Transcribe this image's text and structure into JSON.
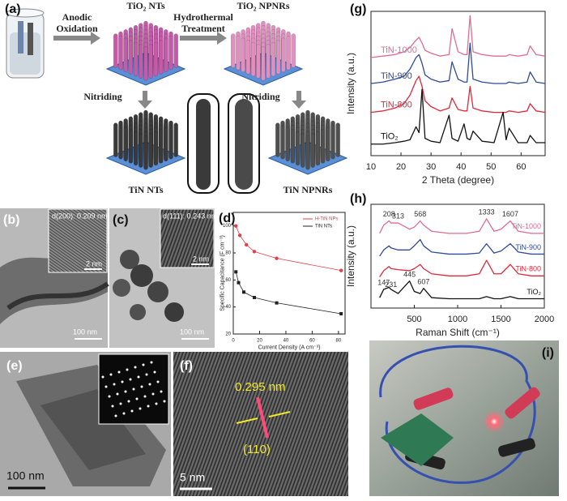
{
  "figure": {
    "panel_a": {
      "label": "(a)",
      "anodic": [
        "Anodic",
        "Oxidation"
      ],
      "tio2_nts": "TiO₂ NTs",
      "hydrothermal": [
        "Hydrothermal",
        "Treatment"
      ],
      "tio2_npnrs": "TiO₂ NPNRs",
      "nitriding_1": "Nitriding",
      "nitriding_2": "Nitriding",
      "tin_nts": "TiN NTs",
      "tin_npnrs": "TiN NPNRs"
    },
    "panel_b": {
      "label": "(b)",
      "spacing": "d(200): 0.209 nm",
      "inset_scale": "2 nm",
      "scale": "100 nm"
    },
    "panel_c": {
      "label": "(c)",
      "spacing": "d(111): 0.243 nm",
      "inset_scale": "2 nm",
      "scale": "100 nm"
    },
    "panel_e": {
      "label": "(e)",
      "scale": "100 nm"
    },
    "panel_f": {
      "label": "(f)",
      "spacing": "0.295 nm",
      "plane": "(110)",
      "scale": "5 nm"
    },
    "panel_i": {
      "label": "(i)"
    }
  },
  "chart_data": [
    {
      "type": "line",
      "panel_label": "(d)",
      "x_label": "Current Density (A cm⁻³)",
      "y_label": "Specific Capacitance (F cm⁻³)",
      "xlim": [
        0,
        85
      ],
      "xticks": [
        0,
        20,
        40,
        60,
        80
      ],
      "ylim": [
        20,
        110
      ],
      "yticks": [
        20,
        40,
        60,
        80,
        100
      ],
      "legend": "upper right",
      "markers": true,
      "series": [
        {
          "name": "H-TiN NPs",
          "color": "#e0404a",
          "marker": "circle",
          "x": [
            2,
            5,
            10,
            16,
            33,
            82
          ],
          "values": [
            100,
            93,
            86,
            81,
            76,
            67
          ]
        },
        {
          "name": "TiN NTs",
          "color": "#222222",
          "marker": "square",
          "x": [
            2,
            4,
            8,
            16,
            33,
            82
          ],
          "values": [
            66,
            58,
            51,
            47,
            43,
            35
          ]
        }
      ]
    },
    {
      "type": "line",
      "panel_label": "(g)",
      "x_label": "2 Theta (degree)",
      "y_label": "Intensity (a.u.)",
      "xlim": [
        10,
        68
      ],
      "xticks": [
        10,
        20,
        30,
        40,
        50,
        60
      ],
      "ylim": [
        0,
        100
      ],
      "series_labels": "left",
      "x": [
        10,
        14,
        18,
        21,
        23,
        25,
        26,
        27,
        28,
        30,
        33,
        36,
        37,
        39,
        41,
        42,
        43,
        44,
        47,
        51,
        54,
        55,
        56,
        59,
        62,
        63,
        65,
        68
      ],
      "series": [
        {
          "name": "TiN-1000",
          "color": "#e06b93",
          "values": [
            68,
            69,
            70,
            72,
            75,
            80,
            82,
            78,
            73,
            71,
            69,
            70,
            88,
            72,
            70,
            70,
            97,
            72,
            70,
            69,
            69,
            69,
            70,
            69,
            70,
            76,
            70,
            69
          ]
        },
        {
          "name": "TiN-900",
          "color": "#2f4a9a",
          "values": [
            50,
            51,
            53,
            55,
            60,
            68,
            70,
            64,
            56,
            53,
            51,
            52,
            65,
            53,
            51,
            51,
            78,
            53,
            51,
            50,
            50,
            50,
            51,
            50,
            51,
            58,
            51,
            50
          ]
        },
        {
          "name": "TiN-800",
          "color": "#e0283a",
          "values": [
            30,
            31,
            33,
            36,
            42,
            52,
            55,
            48,
            38,
            34,
            31,
            33,
            40,
            32,
            31,
            31,
            48,
            33,
            31,
            30,
            30,
            30,
            31,
            30,
            31,
            36,
            31,
            30
          ]
        },
        {
          "name": "TiO₂",
          "color": "#111111",
          "values": [
            8,
            8,
            9,
            10,
            11,
            20,
            16,
            46,
            12,
            10,
            9,
            28,
            12,
            10,
            22,
            12,
            11,
            17,
            10,
            9,
            30,
            11,
            19,
            9,
            9,
            14,
            9,
            9
          ]
        }
      ]
    },
    {
      "type": "line",
      "panel_label": "(h)",
      "x_label": "Raman Shift (cm⁻¹)",
      "y_label": "Intensity (a.u.)",
      "xlim": [
        0,
        2000
      ],
      "xticks": [
        500,
        1000,
        1500,
        2000
      ],
      "ylim": [
        0,
        100
      ],
      "series_labels": "right",
      "x": [
        100,
        147,
        208,
        231,
        313,
        445,
        500,
        568,
        607,
        700,
        900,
        1100,
        1250,
        1333,
        1420,
        1500,
        1607,
        1700,
        1850,
        2000
      ],
      "series": [
        {
          "name": "TiN-1000",
          "color": "#e06b93",
          "values": [
            72,
            80,
            84,
            82,
            82,
            76,
            78,
            84,
            80,
            74,
            72,
            72,
            74,
            86,
            74,
            76,
            84,
            74,
            72,
            72
          ]
        },
        {
          "name": "TiN-900",
          "color": "#2f4a9a",
          "values": [
            50,
            56,
            60,
            58,
            56,
            56,
            60,
            66,
            60,
            54,
            52,
            52,
            53,
            62,
            53,
            55,
            62,
            54,
            52,
            52
          ]
        },
        {
          "name": "TiN-800",
          "color": "#e0283a",
          "values": [
            30,
            36,
            40,
            38,
            37,
            36,
            38,
            42,
            38,
            33,
            31,
            31,
            33,
            46,
            33,
            33,
            42,
            33,
            31,
            31
          ]
        },
        {
          "name": "TiO₂",
          "color": "#111111",
          "values": [
            10,
            18,
            20,
            18,
            14,
            26,
            16,
            14,
            19,
            10,
            9,
            9,
            9,
            11,
            9,
            9,
            11,
            9,
            9,
            9
          ]
        }
      ],
      "annotations": [
        {
          "text": "208",
          "x": 208,
          "y": 90
        },
        {
          "text": "313",
          "x": 313,
          "y": 88
        },
        {
          "text": "568",
          "x": 568,
          "y": 90
        },
        {
          "text": "1333",
          "x": 1333,
          "y": 92
        },
        {
          "text": "1607",
          "x": 1607,
          "y": 90
        },
        {
          "text": "147",
          "x": 147,
          "y": 24
        },
        {
          "text": "231",
          "x": 231,
          "y": 22
        },
        {
          "text": "445",
          "x": 445,
          "y": 32
        },
        {
          "text": "607",
          "x": 607,
          "y": 25
        }
      ]
    }
  ]
}
